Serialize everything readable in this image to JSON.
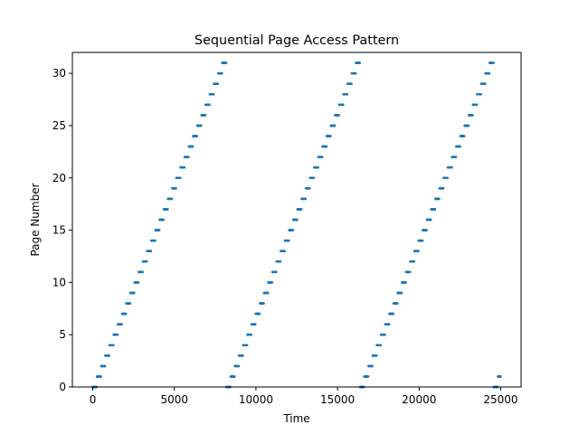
{
  "chart_data": {
    "type": "scatter",
    "title": "Sequential Page Access Pattern",
    "xlabel": "Time",
    "ylabel": "Page Number",
    "xlim": [
      -1250,
      26250
    ],
    "ylim": [
      0,
      32
    ],
    "xticks": [
      0,
      5000,
      10000,
      15000,
      20000,
      25000
    ],
    "yticks": [
      0,
      5,
      10,
      15,
      20,
      25,
      30
    ],
    "grid": false,
    "legend": "none",
    "marker_color": "#1f77b4",
    "series": [
      {
        "period": 8192,
        "pages": 32,
        "accesses_per_page": 256,
        "x_range": [
          0,
          24999
        ],
        "description": "page = floor(time / 256) mod 32"
      }
    ]
  }
}
